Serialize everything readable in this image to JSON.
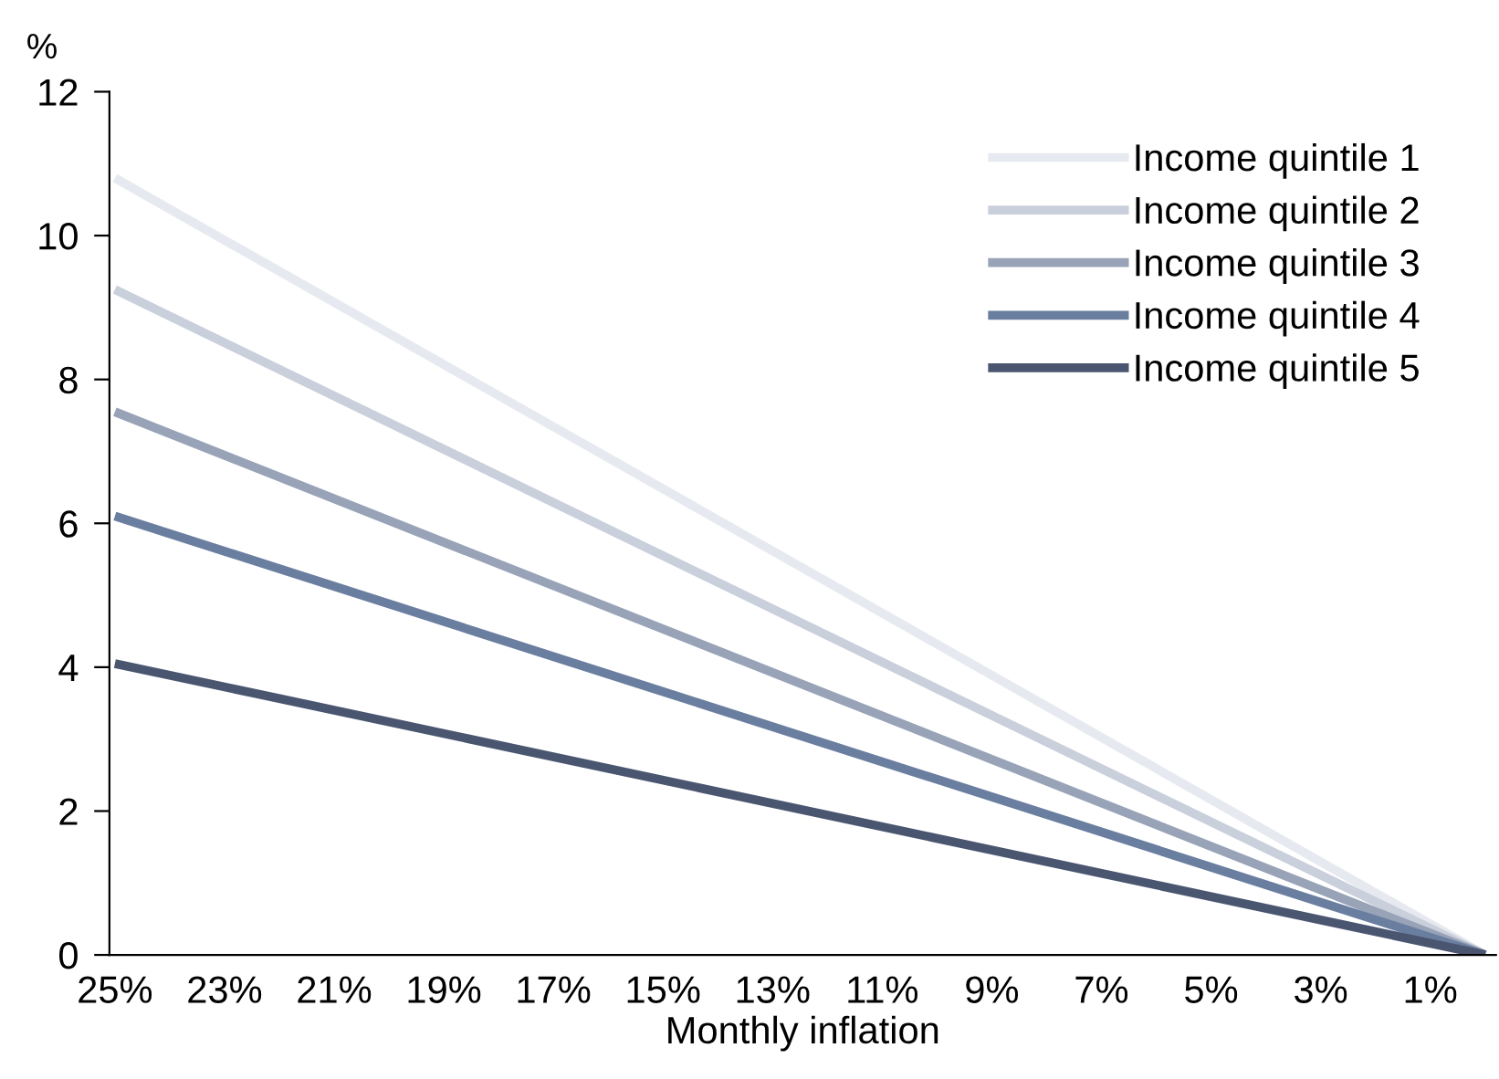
{
  "chart_data": {
    "type": "line",
    "xlabel": "Monthly inflation",
    "ylabel": "%",
    "xlim": [
      25.1,
      -0.2
    ],
    "xticks": [
      {
        "value": 25,
        "label": "25%"
      },
      {
        "value": 23,
        "label": "23%"
      },
      {
        "value": 21,
        "label": "21%"
      },
      {
        "value": 19,
        "label": "19%"
      },
      {
        "value": 17,
        "label": "17%"
      },
      {
        "value": 15,
        "label": "15%"
      },
      {
        "value": 13,
        "label": "13%"
      },
      {
        "value": 11,
        "label": "11%"
      },
      {
        "value": 9,
        "label": "9%"
      },
      {
        "value": 7,
        "label": "7%"
      },
      {
        "value": 5,
        "label": "5%"
      },
      {
        "value": 3,
        "label": "3%"
      },
      {
        "value": 1,
        "label": "1%"
      }
    ],
    "ylim": [
      0,
      12
    ],
    "yticks": [
      0,
      2,
      4,
      6,
      8,
      10,
      12
    ],
    "x": [
      25,
      0
    ],
    "series": [
      {
        "name": "Income quintile 1",
        "color": "#e6e9ef",
        "values": [
          10.8,
          0
        ]
      },
      {
        "name": "Income quintile 2",
        "color": "#c9cfdb",
        "values": [
          9.25,
          0
        ]
      },
      {
        "name": "Income quintile 3",
        "color": "#98a3b8",
        "values": [
          7.55,
          0
        ]
      },
      {
        "name": "Income quintile 4",
        "color": "#6a7ea0",
        "values": [
          6.1,
          0
        ]
      },
      {
        "name": "Income quintile 5",
        "color": "#4a5670",
        "values": [
          4.05,
          0
        ]
      }
    ],
    "grid": false,
    "legend": "top right",
    "marker": "none",
    "line_style": "solid"
  }
}
